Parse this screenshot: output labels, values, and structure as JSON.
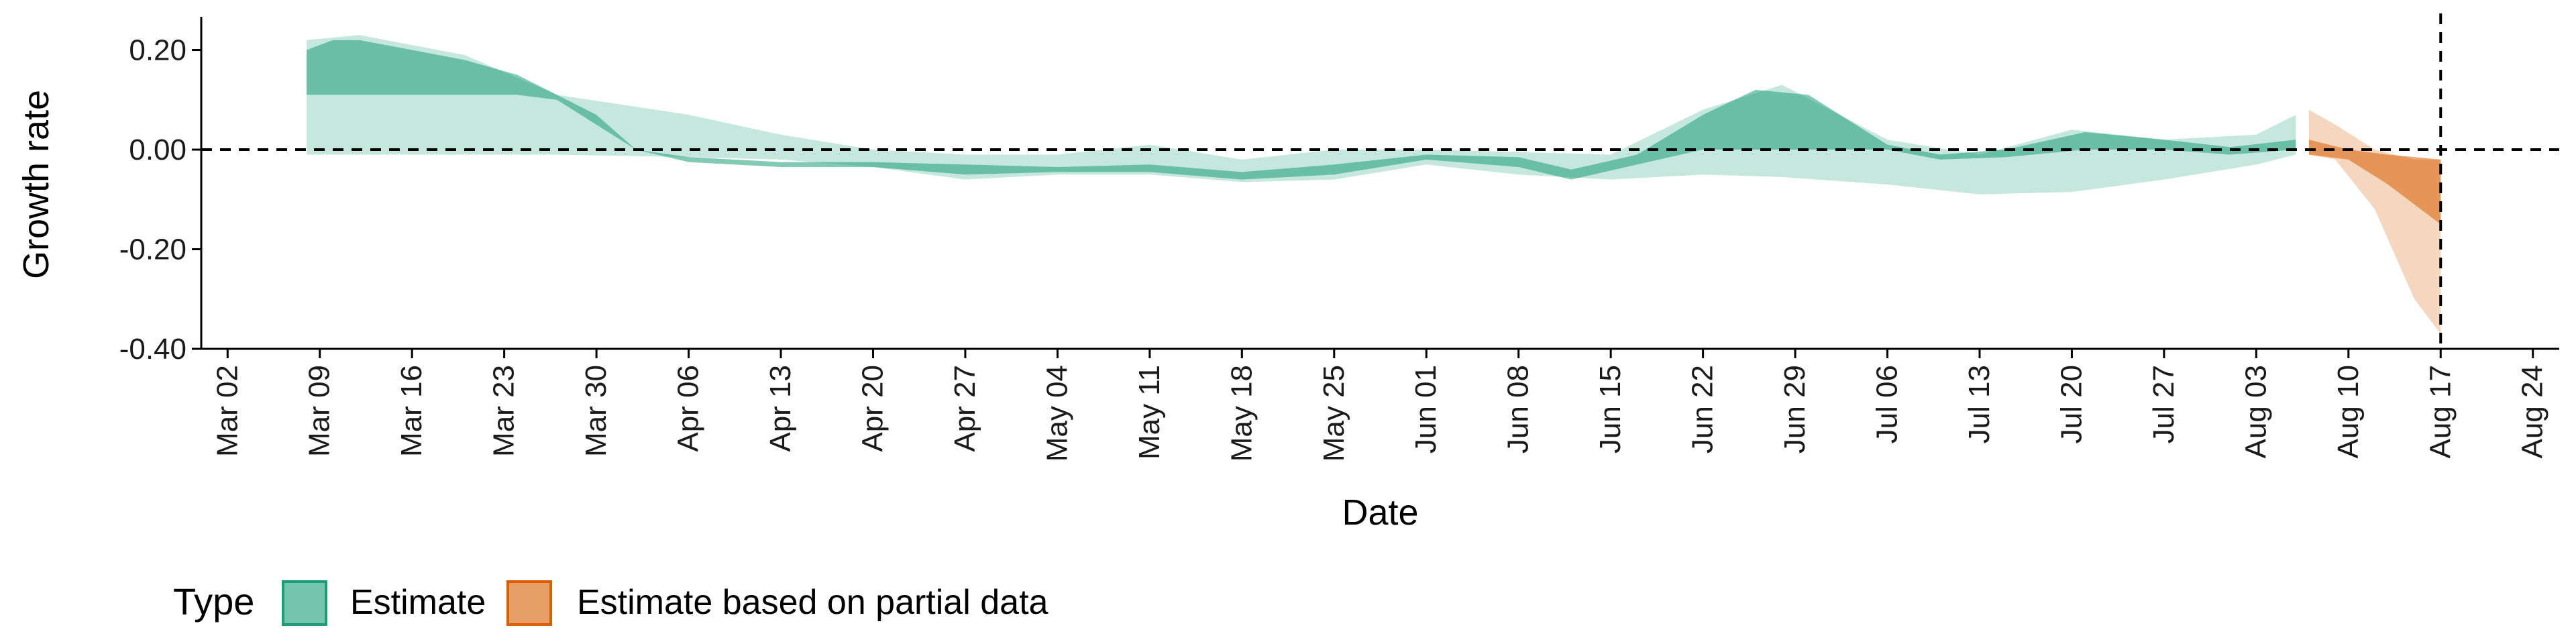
{
  "chart_data": {
    "type": "area",
    "xlabel": "Date",
    "ylabel": "Growth rate",
    "xlim": [
      "2020-02-29",
      "2020-08-26"
    ],
    "ylim": [
      -0.4,
      0.26
    ],
    "x_ticks": [
      "2020-03-02",
      "2020-03-09",
      "2020-03-16",
      "2020-03-23",
      "2020-03-30",
      "2020-04-06",
      "2020-04-13",
      "2020-04-20",
      "2020-04-27",
      "2020-05-04",
      "2020-05-11",
      "2020-05-18",
      "2020-05-25",
      "2020-06-01",
      "2020-06-08",
      "2020-06-15",
      "2020-06-22",
      "2020-06-29",
      "2020-07-06",
      "2020-07-13",
      "2020-07-20",
      "2020-07-27",
      "2020-08-03",
      "2020-08-10",
      "2020-08-17",
      "2020-08-24"
    ],
    "x_tick_labels": [
      "Mar 02",
      "Mar 09",
      "Mar 16",
      "Mar 23",
      "Mar 30",
      "Apr 06",
      "Apr 13",
      "Apr 20",
      "Apr 27",
      "May 04",
      "May 11",
      "May 18",
      "May 25",
      "Jun 01",
      "Jun 08",
      "Jun 15",
      "Jun 22",
      "Jun 29",
      "Jul 06",
      "Jul 13",
      "Jul 20",
      "Jul 27",
      "Aug 03",
      "Aug 10",
      "Aug 17",
      "Aug 24"
    ],
    "y_ticks": [
      0.2,
      0.0,
      -0.2,
      -0.4
    ],
    "y_tick_labels": [
      "0.20",
      "0.00",
      "-0.20",
      "-0.40"
    ],
    "hline": 0,
    "vline": "2020-08-17",
    "grid": false,
    "legend": {
      "title": "Type",
      "position": "bottom",
      "entries": [
        "Estimate",
        "Estimate based on partial data"
      ]
    },
    "colors": {
      "estimate": "#1b9e77",
      "partial": "#d95f02"
    },
    "series": [
      {
        "name": "Estimate",
        "band": "inner",
        "points": [
          {
            "x": "2020-03-08",
            "lower": 0.11,
            "upper": 0.2
          },
          {
            "x": "2020-03-10",
            "lower": 0.11,
            "upper": 0.22
          },
          {
            "x": "2020-03-12",
            "lower": 0.11,
            "upper": 0.22
          },
          {
            "x": "2020-03-16",
            "lower": 0.11,
            "upper": 0.2
          },
          {
            "x": "2020-03-20",
            "lower": 0.11,
            "upper": 0.18
          },
          {
            "x": "2020-03-24",
            "lower": 0.11,
            "upper": 0.15
          },
          {
            "x": "2020-03-27",
            "lower": 0.1,
            "upper": 0.11
          },
          {
            "x": "2020-03-30",
            "lower": 0.05,
            "upper": 0.07
          },
          {
            "x": "2020-04-02",
            "lower": 0.0,
            "upper": 0.0
          },
          {
            "x": "2020-04-06",
            "lower": -0.025,
            "upper": -0.015
          },
          {
            "x": "2020-04-13",
            "lower": -0.035,
            "upper": -0.025
          },
          {
            "x": "2020-04-20",
            "lower": -0.035,
            "upper": -0.025
          },
          {
            "x": "2020-04-27",
            "lower": -0.05,
            "upper": -0.03
          },
          {
            "x": "2020-05-04",
            "lower": -0.045,
            "upper": -0.035
          },
          {
            "x": "2020-05-11",
            "lower": -0.045,
            "upper": -0.03
          },
          {
            "x": "2020-05-18",
            "lower": -0.06,
            "upper": -0.045
          },
          {
            "x": "2020-05-25",
            "lower": -0.05,
            "upper": -0.03
          },
          {
            "x": "2020-06-01",
            "lower": -0.02,
            "upper": -0.01
          },
          {
            "x": "2020-06-08",
            "lower": -0.035,
            "upper": -0.015
          },
          {
            "x": "2020-06-12",
            "lower": -0.06,
            "upper": -0.04
          },
          {
            "x": "2020-06-17",
            "lower": -0.03,
            "upper": -0.01
          },
          {
            "x": "2020-06-22",
            "lower": 0.0,
            "upper": 0.07
          },
          {
            "x": "2020-06-26",
            "lower": 0.0,
            "upper": 0.12
          },
          {
            "x": "2020-06-30",
            "lower": 0.0,
            "upper": 0.11
          },
          {
            "x": "2020-07-06",
            "lower": 0.0,
            "upper": 0.01
          },
          {
            "x": "2020-07-10",
            "lower": -0.02,
            "upper": -0.01
          },
          {
            "x": "2020-07-15",
            "lower": -0.015,
            "upper": 0.0
          },
          {
            "x": "2020-07-21",
            "lower": 0.0,
            "upper": 0.035
          },
          {
            "x": "2020-07-27",
            "lower": 0.0,
            "upper": 0.02
          },
          {
            "x": "2020-08-01",
            "lower": -0.01,
            "upper": 0.005
          },
          {
            "x": "2020-08-06",
            "lower": 0.0,
            "upper": 0.02
          }
        ]
      },
      {
        "name": "Estimate",
        "band": "outer",
        "points": [
          {
            "x": "2020-03-08",
            "lower": -0.01,
            "upper": 0.22
          },
          {
            "x": "2020-03-12",
            "lower": -0.01,
            "upper": 0.23
          },
          {
            "x": "2020-03-20",
            "lower": -0.01,
            "upper": 0.19
          },
          {
            "x": "2020-03-27",
            "lower": -0.01,
            "upper": 0.11
          },
          {
            "x": "2020-04-06",
            "lower": -0.015,
            "upper": 0.07
          },
          {
            "x": "2020-04-13",
            "lower": -0.02,
            "upper": 0.03
          },
          {
            "x": "2020-04-20",
            "lower": -0.035,
            "upper": 0.0
          },
          {
            "x": "2020-04-27",
            "lower": -0.06,
            "upper": -0.01
          },
          {
            "x": "2020-05-04",
            "lower": -0.05,
            "upper": -0.01
          },
          {
            "x": "2020-05-11",
            "lower": -0.05,
            "upper": 0.01
          },
          {
            "x": "2020-05-18",
            "lower": -0.065,
            "upper": -0.02
          },
          {
            "x": "2020-05-25",
            "lower": -0.06,
            "upper": 0.0
          },
          {
            "x": "2020-06-01",
            "lower": -0.03,
            "upper": 0.0
          },
          {
            "x": "2020-06-08",
            "lower": -0.05,
            "upper": -0.005
          },
          {
            "x": "2020-06-15",
            "lower": -0.06,
            "upper": -0.01
          },
          {
            "x": "2020-06-22",
            "lower": -0.05,
            "upper": 0.08
          },
          {
            "x": "2020-06-28",
            "lower": -0.055,
            "upper": 0.13
          },
          {
            "x": "2020-07-06",
            "lower": -0.07,
            "upper": 0.02
          },
          {
            "x": "2020-07-13",
            "lower": -0.09,
            "upper": -0.01
          },
          {
            "x": "2020-07-20",
            "lower": -0.085,
            "upper": 0.04
          },
          {
            "x": "2020-07-27",
            "lower": -0.06,
            "upper": 0.02
          },
          {
            "x": "2020-08-03",
            "lower": -0.03,
            "upper": 0.03
          },
          {
            "x": "2020-08-06",
            "lower": -0.01,
            "upper": 0.07
          }
        ]
      },
      {
        "name": "Estimate based on partial data",
        "band": "inner",
        "points": [
          {
            "x": "2020-08-07",
            "lower": -0.01,
            "upper": 0.02
          },
          {
            "x": "2020-08-10",
            "lower": -0.02,
            "upper": 0.0
          },
          {
            "x": "2020-08-13",
            "lower": -0.07,
            "upper": -0.01
          },
          {
            "x": "2020-08-17",
            "lower": -0.15,
            "upper": -0.02
          }
        ]
      },
      {
        "name": "Estimate based on partial data",
        "band": "outer",
        "points": [
          {
            "x": "2020-08-07",
            "lower": -0.01,
            "upper": 0.08
          },
          {
            "x": "2020-08-09",
            "lower": -0.02,
            "upper": 0.05
          },
          {
            "x": "2020-08-12",
            "lower": -0.12,
            "upper": 0.0
          },
          {
            "x": "2020-08-15",
            "lower": -0.3,
            "upper": -0.02
          },
          {
            "x": "2020-08-17",
            "lower": -0.37,
            "upper": -0.02
          }
        ]
      }
    ]
  }
}
